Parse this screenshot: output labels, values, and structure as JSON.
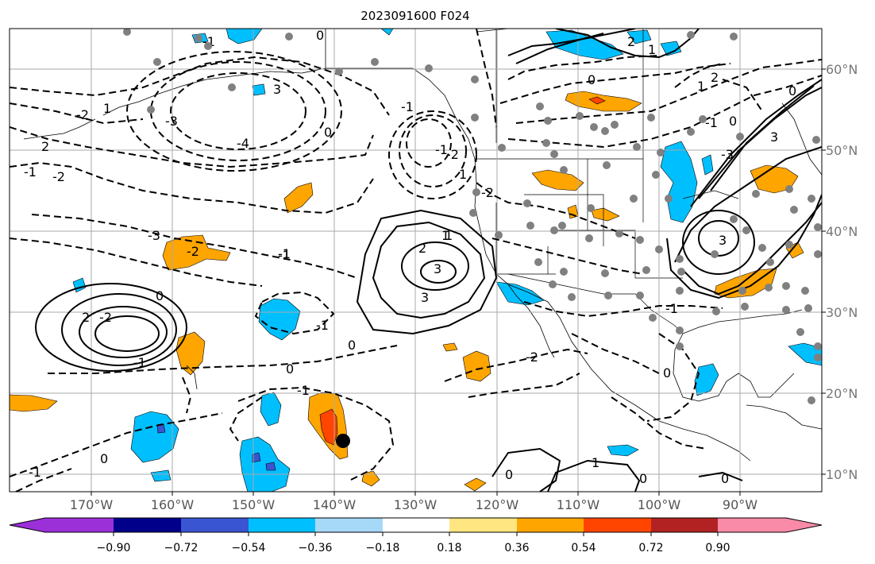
{
  "title": "2023091600 F024",
  "map": {
    "type": "contour-map",
    "grid": true,
    "lon_labels": [
      "170°W",
      "160°W",
      "150°W",
      "140°W",
      "130°W",
      "120°W",
      "110°W",
      "100°W",
      "90°W"
    ],
    "lat_labels": [
      "60°N",
      "50°N",
      "40°N",
      "30°N",
      "20°N",
      "10°N"
    ],
    "contour_labels": [
      "0",
      "-1",
      "-2",
      "-3",
      "-4",
      "-1",
      "2",
      "1",
      "0",
      "-1",
      "-2",
      "-3",
      "1",
      "2",
      "3",
      "0",
      "-1",
      "0",
      "-1",
      "-2",
      "2",
      "1",
      "0",
      "3",
      "-1",
      "-2",
      "0",
      "1",
      "1",
      "0",
      "-1",
      "0",
      "1",
      "-1",
      "0",
      "2",
      "3",
      "-1",
      "0",
      "-2",
      "3",
      "2",
      "1",
      "0",
      "-1",
      "-2",
      "0",
      "0",
      "-1",
      "3",
      "-3",
      "-2",
      "-1"
    ],
    "fill_colors": {
      "neg_light": "#a6d9f7",
      "neg_mid": "#00bfff",
      "neg_dark": "#3a55d1",
      "pos_light": "#ffe680",
      "pos_mid": "#ffa500",
      "pos_dark": "#ff4500",
      "marker": "#000000",
      "station": "#808080"
    }
  },
  "colorbar": {
    "colors": [
      "#9b30d9",
      "#00008b",
      "#3a55d1",
      "#00bfff",
      "#a6d9f7",
      "#ffffff",
      "#ffe680",
      "#ffa500",
      "#ff4500",
      "#b22222",
      "#f98aa8"
    ],
    "tick_labels": [
      "−0.90",
      "−0.72",
      "−0.54",
      "−0.36",
      "−0.18",
      "0.18",
      "0.36",
      "0.54",
      "0.72",
      "0.90"
    ]
  }
}
